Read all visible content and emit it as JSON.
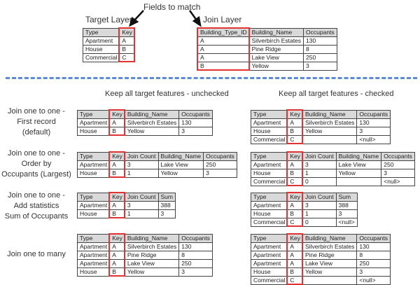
{
  "top": {
    "fields_to_match": "Fields to match",
    "target_layer_label": "Target Layer",
    "join_layer_label": "Join Layer",
    "target_table": {
      "columns": [
        "Type",
        "Key"
      ],
      "rows": [
        [
          "Apartment",
          "A"
        ],
        [
          "House",
          "B"
        ],
        [
          "Commercial",
          "C"
        ]
      ],
      "key_col": 1
    },
    "join_table": {
      "columns": [
        "Building_Type_ID",
        "Building_Name",
        "Occupants"
      ],
      "rows": [
        [
          "A",
          "Silverbirch Estates",
          "130"
        ],
        [
          "A",
          "Pine Ridge",
          "8"
        ],
        [
          "A",
          "Lake View",
          "250"
        ],
        [
          "B",
          "Yellow",
          "3"
        ]
      ],
      "key_col": 0
    }
  },
  "headings": {
    "unchecked": "Keep all target features - unchecked",
    "checked": "Keep all target features - checked"
  },
  "sections": [
    {
      "label": [
        "Join one to one -",
        "First record",
        "(default)"
      ],
      "unchecked": {
        "columns": [
          "Type",
          "Key",
          "Building_Name",
          "Occupants"
        ],
        "rows": [
          [
            "Apartment",
            "A",
            "Silverbirch Estates",
            "130"
          ],
          [
            "House",
            "B",
            "Yellow",
            "3"
          ]
        ],
        "key_col": 1
      },
      "checked": {
        "columns": [
          "Type",
          "Key",
          "Building_Name",
          "Occupants"
        ],
        "rows": [
          [
            "Apartment",
            "A",
            "Silverbirch Estates",
            "130"
          ],
          [
            "House",
            "B",
            "Yellow",
            "3"
          ],
          [
            "Commercial",
            "C",
            "",
            "<null>"
          ]
        ],
        "key_col": 1
      }
    },
    {
      "label": [
        "Join one to one -",
        "Order by",
        "Occupants (Largest)"
      ],
      "unchecked": {
        "columns": [
          "Type",
          "Key",
          "Join Count",
          "Building_Name",
          "Occupants"
        ],
        "rows": [
          [
            "Apartment",
            "A",
            "3",
            "Lake View",
            "250"
          ],
          [
            "House",
            "B",
            "1",
            "Yellow",
            "3"
          ]
        ],
        "key_col": 1
      },
      "checked": {
        "columns": [
          "Type",
          "Key",
          "Join Count",
          "Building_Name",
          "Occupants"
        ],
        "rows": [
          [
            "Apartment",
            "A",
            "3",
            "Lake View",
            "250"
          ],
          [
            "House",
            "B",
            "1",
            "Yellow",
            "3"
          ],
          [
            "Commercial",
            "C",
            "0",
            "",
            "<null>"
          ]
        ],
        "key_col": 1
      }
    },
    {
      "label": [
        "Join one to one -",
        "Add statistics",
        "Sum of Occupants"
      ],
      "unchecked": {
        "columns": [
          "Type",
          "Key",
          "Join Count",
          "Sum"
        ],
        "rows": [
          [
            "Apartment",
            "A",
            "3",
            "388"
          ],
          [
            "House",
            "B",
            "1",
            "3"
          ]
        ],
        "key_col": 1
      },
      "checked": {
        "columns": [
          "Type",
          "Key",
          "Join Count",
          "Sum"
        ],
        "rows": [
          [
            "Apartment",
            "A",
            "3",
            "388"
          ],
          [
            "House",
            "B",
            "1",
            "3"
          ],
          [
            "Commercial",
            "C",
            "0",
            "<null>"
          ]
        ],
        "key_col": 1
      }
    },
    {
      "label": [
        "Join one to many"
      ],
      "unchecked": {
        "columns": [
          "Type",
          "Key",
          "Building_Name",
          "Occupants"
        ],
        "rows": [
          [
            "Apartment",
            "A",
            "Silverbirch Estates",
            "130"
          ],
          [
            "Apartment",
            "A",
            "Pine Ridge",
            "8"
          ],
          [
            "Apartment",
            "A",
            "Lake View",
            "250"
          ],
          [
            "House",
            "B",
            "Yellow",
            "3"
          ]
        ],
        "key_col": 1
      },
      "checked": {
        "columns": [
          "Type",
          "Key",
          "Building_Name",
          "Occupants"
        ],
        "rows": [
          [
            "Apartment",
            "A",
            "Silverbirch Estates",
            "130"
          ],
          [
            "Apartment",
            "A",
            "Pine Ridge",
            "8"
          ],
          [
            "Apartment",
            "A",
            "Lake View",
            "250"
          ],
          [
            "House",
            "B",
            "Yellow",
            "3"
          ],
          [
            "Commercial",
            "C",
            "",
            "<null>"
          ]
        ],
        "key_col": 1
      }
    }
  ],
  "colors": {
    "key_highlight": "#e03434",
    "divider": "#5b8bd6",
    "header_bg": "#d9d9d9"
  }
}
